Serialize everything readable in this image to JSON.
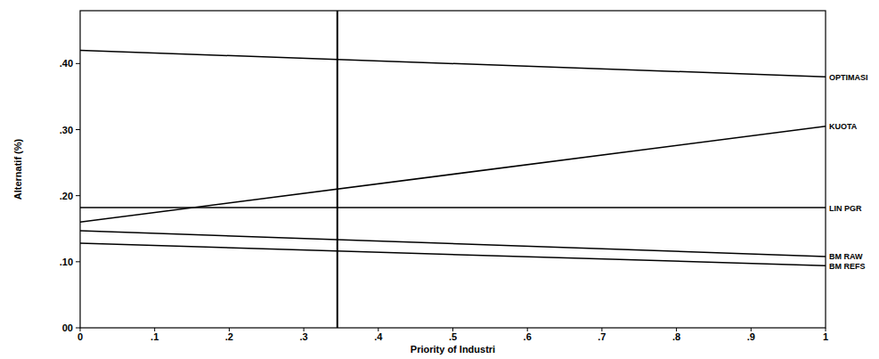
{
  "chart_data": {
    "type": "line",
    "x_label": "Priority of Industri",
    "y_label": "Alternatif (%)",
    "x": [
      0,
      1
    ],
    "series": [
      {
        "name": "OPTIMASI",
        "color": "#000000",
        "values": [
          0.42,
          0.38
        ]
      },
      {
        "name": "KUOTA",
        "color": "#000000",
        "values": [
          0.16,
          0.305
        ]
      },
      {
        "name": "LIN PGR",
        "color": "#000000",
        "values": [
          0.182,
          0.182
        ]
      },
      {
        "name": "BM RAW",
        "color": "#000000",
        "values": [
          0.147,
          0.108
        ]
      },
      {
        "name": "BM REFS",
        "color": "#000000",
        "values": [
          0.128,
          0.094
        ]
      }
    ],
    "reference_x": 0.345,
    "xlim": [
      0,
      1
    ],
    "ylim": [
      0,
      0.48
    ],
    "xticks": [
      0,
      {
        "value": 0.1,
        "label": ".1"
      },
      {
        "value": 0.2,
        "label": ".2"
      },
      {
        "value": 0.3,
        "label": ".3"
      },
      {
        "value": 0.4,
        "label": ".4"
      },
      {
        "value": 0.5,
        "label": ".5"
      },
      {
        "value": 0.6,
        "label": ".6"
      },
      {
        "value": 0.7,
        "label": ".7"
      },
      {
        "value": 0.8,
        "label": ".8"
      },
      {
        "value": 0.9,
        "label": ".9"
      },
      1
    ],
    "yticks": [
      {
        "value": 0,
        "label": "00"
      },
      {
        "value": 0.1,
        "label": ".10"
      },
      {
        "value": 0.2,
        "label": ".20"
      },
      {
        "value": 0.3,
        "label": ".30"
      },
      {
        "value": 0.4,
        "label": ".40"
      }
    ],
    "grid": false,
    "legend": "right"
  }
}
